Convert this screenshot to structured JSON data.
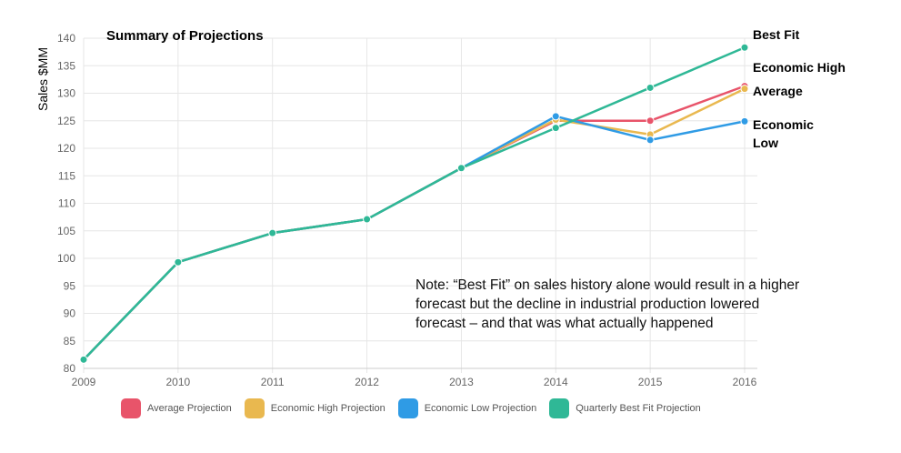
{
  "chart_data": {
    "type": "line",
    "title": "Summary of Projections",
    "xlabel": "",
    "ylabel": "Sales $MM",
    "categories": [
      "2009",
      "2010",
      "2011",
      "2012",
      "2013",
      "2014",
      "2015",
      "2016"
    ],
    "ylim": [
      80,
      140
    ],
    "yticks": [
      80,
      85,
      90,
      95,
      100,
      105,
      110,
      115,
      120,
      125,
      130,
      135,
      140
    ],
    "grid": true,
    "legend_position": "bottom",
    "series": [
      {
        "name": "Average Projection",
        "color": "#e8546a",
        "values": [
          81.6,
          99.3,
          104.6,
          107.1,
          116.4,
          125.0,
          125.0,
          131.3
        ]
      },
      {
        "name": "Economic High Projection",
        "color": "#e9b84f",
        "values": [
          81.6,
          99.3,
          104.6,
          107.1,
          116.4,
          125.2,
          122.5,
          130.8
        ]
      },
      {
        "name": "Economic Low Projection",
        "color": "#2f9be5",
        "values": [
          81.6,
          99.3,
          104.6,
          107.1,
          116.4,
          125.8,
          121.5,
          124.9
        ]
      },
      {
        "name": "Quarterly Best Fit Projection",
        "color": "#2fb896",
        "values": [
          81.6,
          99.3,
          104.6,
          107.1,
          116.4,
          123.7,
          131.0,
          138.3
        ]
      }
    ],
    "end_labels": [
      "Best Fit",
      "Economic High",
      "Average",
      "Economic",
      "Low"
    ],
    "note_lines": [
      "Note: “Best Fit” on sales history alone  would result in a higher",
      "forecast but the decline in industrial production lowered",
      "forecast – and that was what actually happened"
    ]
  }
}
